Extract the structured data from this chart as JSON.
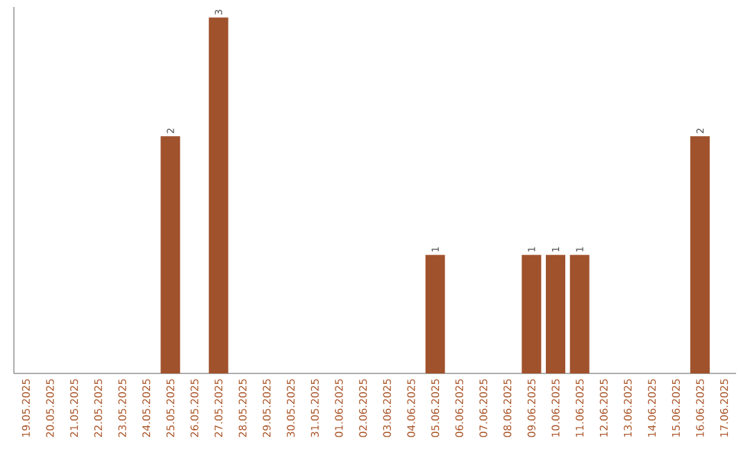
{
  "chart_data": {
    "type": "bar",
    "categories": [
      "19.05.2025",
      "20.05.2025",
      "21.05.2025",
      "22.05.2025",
      "23.05.2025",
      "24.05.2025",
      "25.05.2025",
      "26.05.2025",
      "27.05.2025",
      "28.05.2025",
      "29.05.2025",
      "30.05.2025",
      "31.05.2025",
      "01.06.2025",
      "02.06.2025",
      "03.06.2025",
      "04.06.2025",
      "05.06.2025",
      "06.06.2025",
      "07.06.2025",
      "08.06.2025",
      "09.06.2025",
      "10.06.2025",
      "11.06.2025",
      "12.06.2025",
      "13.06.2025",
      "14.06.2025",
      "15.06.2025",
      "16.06.2025",
      "17.06.2025"
    ],
    "values": [
      0,
      0,
      0,
      0,
      0,
      0,
      2,
      0,
      3,
      0,
      0,
      0,
      0,
      0,
      0,
      0,
      0,
      1,
      0,
      0,
      0,
      1,
      1,
      1,
      0,
      0,
      0,
      0,
      2,
      0
    ],
    "value_labels": [
      null,
      null,
      null,
      null,
      null,
      null,
      "2",
      null,
      "3",
      null,
      null,
      null,
      null,
      null,
      null,
      null,
      null,
      "1",
      null,
      null,
      null,
      "1",
      "1",
      "1",
      null,
      null,
      null,
      null,
      "2",
      null
    ],
    "color": "#a0522d",
    "tick_labels": "x"
  }
}
